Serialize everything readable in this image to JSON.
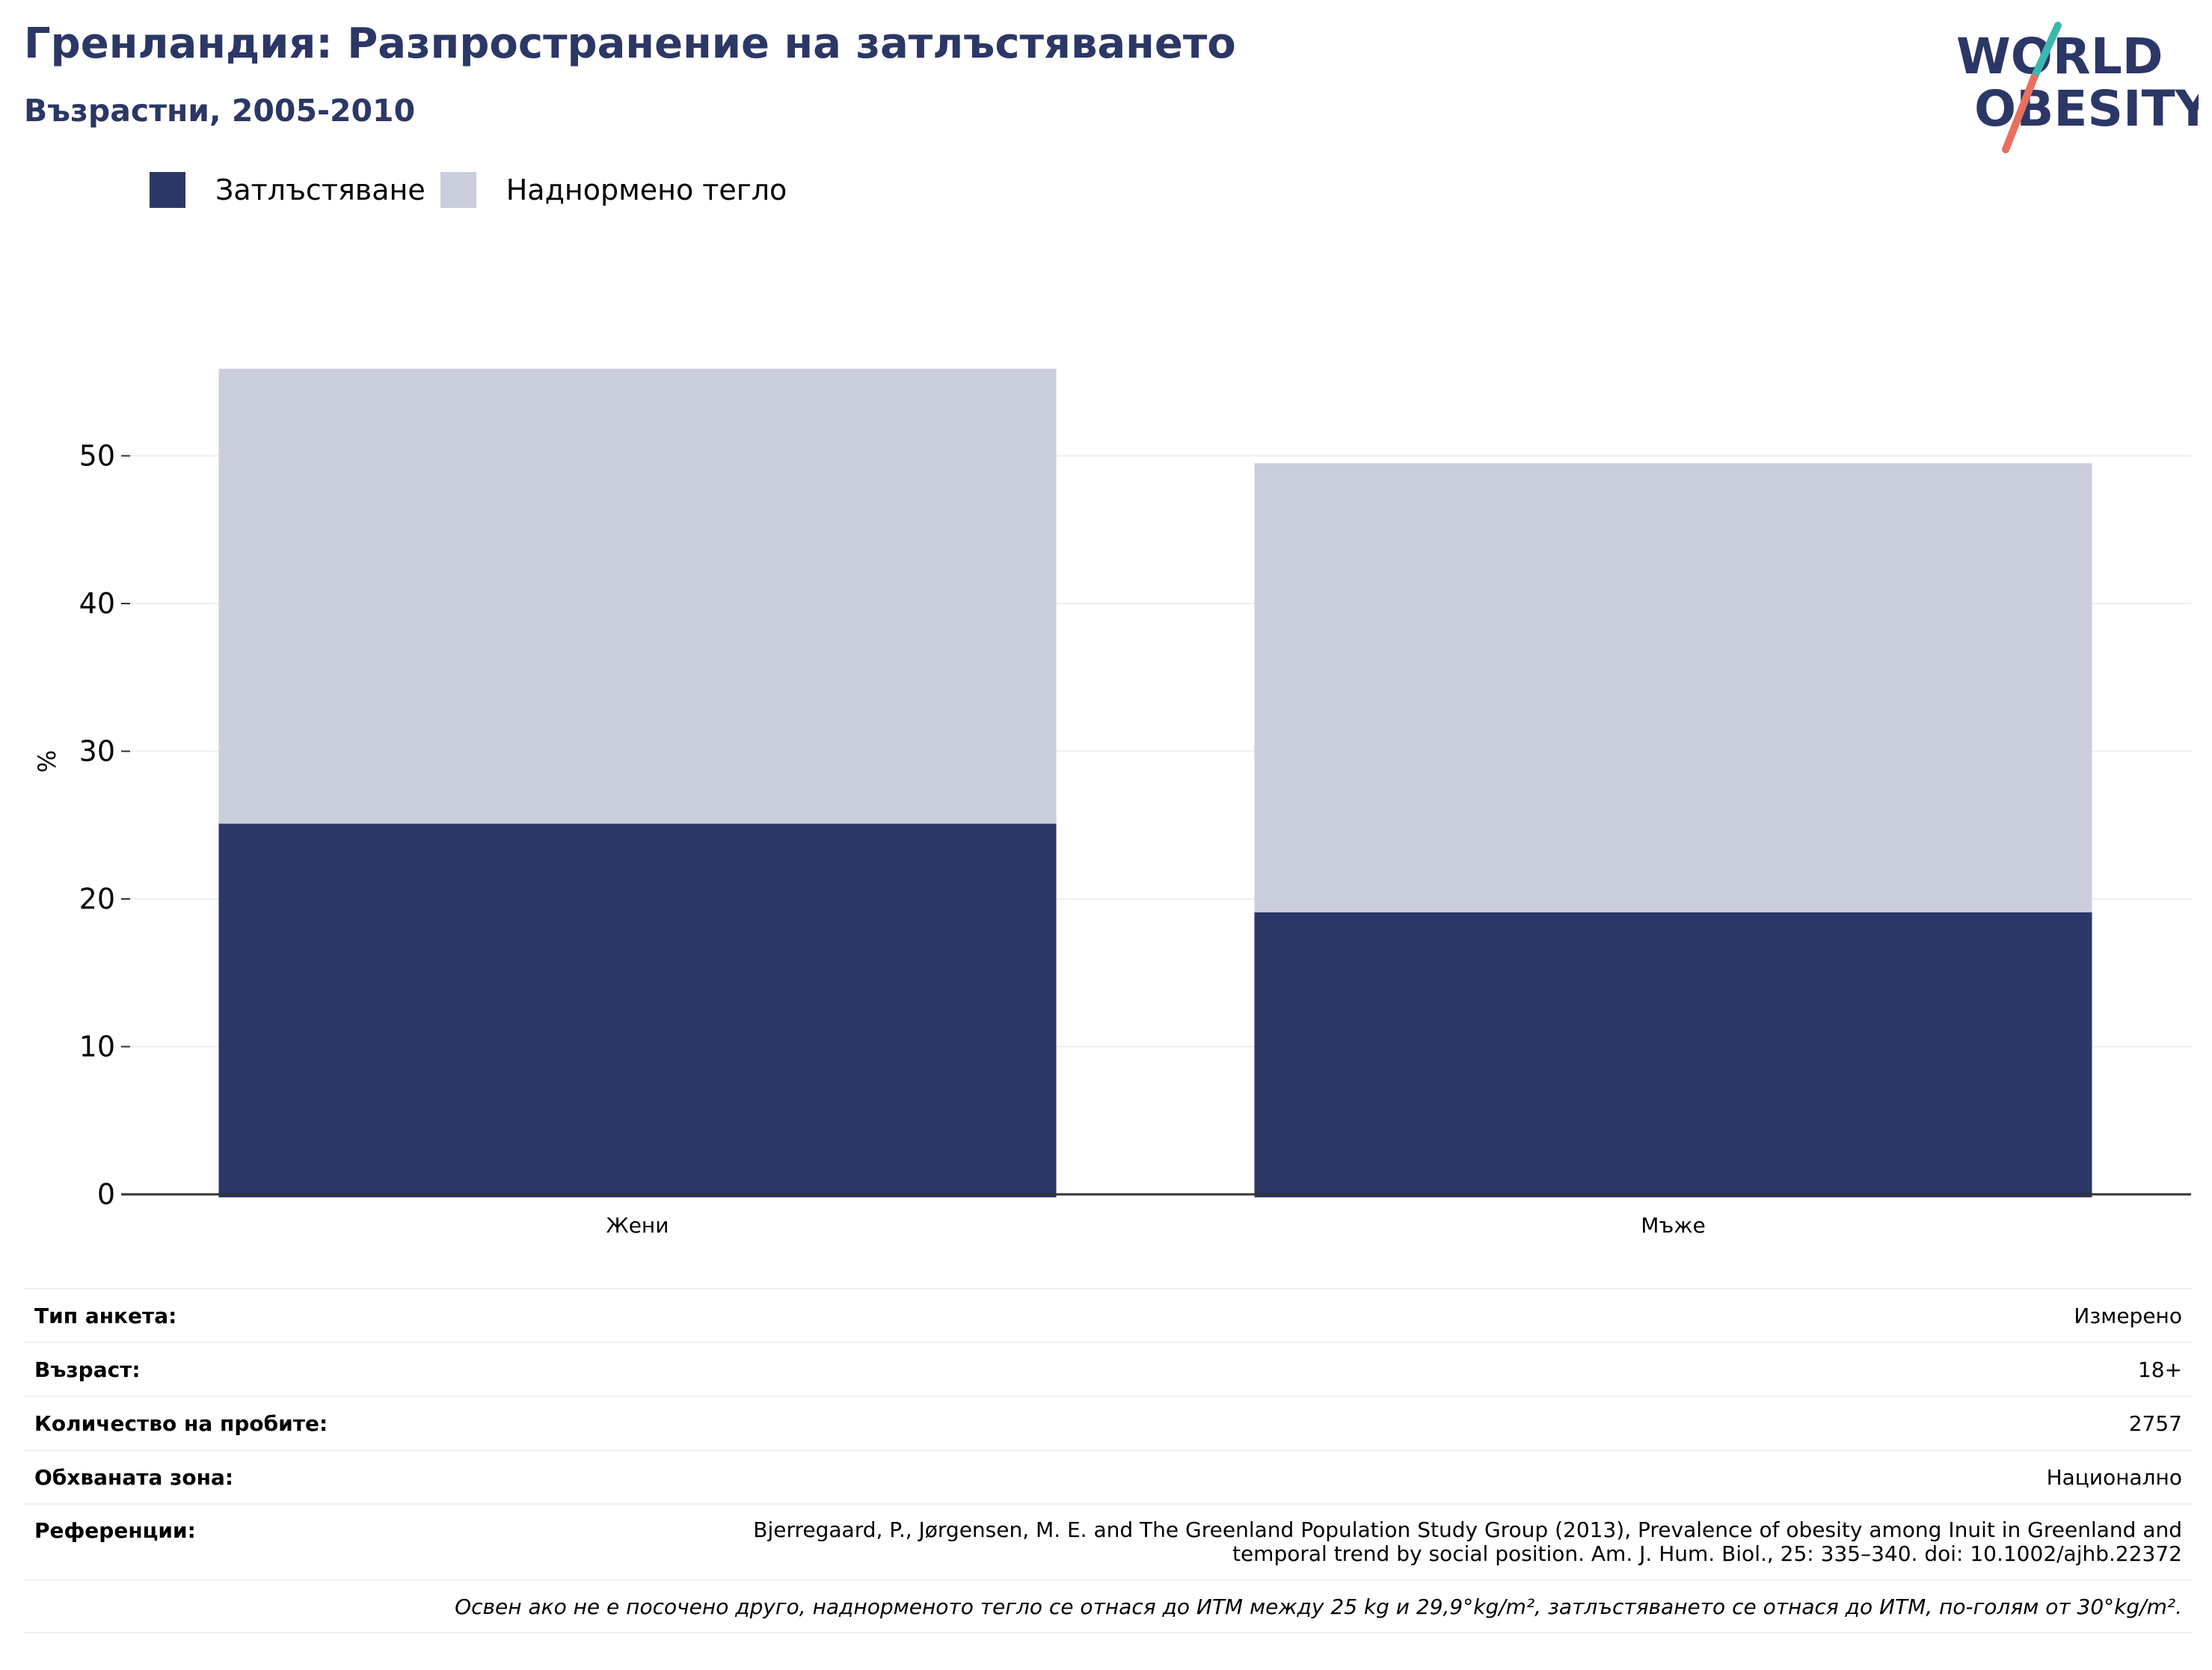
{
  "header": {
    "title": "Гренландия: Разпространение на затлъстяването",
    "subtitle": "Възрастни, 2005-2010"
  },
  "logo": {
    "line1": "WORLD",
    "line2": "OBESITY",
    "colors": {
      "text": "#2b3766",
      "slash_top": "#3ab8b0",
      "slash_bottom": "#e8705f"
    }
  },
  "colors": {
    "obesity": "#2b3766",
    "overweight": "#cacddb",
    "grid": "#eceef3",
    "axis": "#333333"
  },
  "legend": {
    "items": [
      {
        "label": "Затлъстяване",
        "color": "#2b3766"
      },
      {
        "label": "Наднормено тегло",
        "color": "#cacddb"
      }
    ]
  },
  "chart_data": {
    "type": "bar",
    "stacked": true,
    "categories": [
      "Жени",
      "Мъже"
    ],
    "series": [
      {
        "name": "Затлъстяване",
        "values": [
          25.1,
          19.1
        ],
        "color": "#2b3766"
      },
      {
        "name": "Наднормено тегло",
        "values": [
          30.8,
          30.4
        ],
        "color": "#cacddb"
      }
    ],
    "ylabel": "%",
    "yticks": [
      0,
      10,
      20,
      30,
      40,
      50
    ],
    "ylim": [
      0,
      56
    ],
    "grid": true,
    "legend_position": "top-left"
  },
  "meta": {
    "survey_label": "Тип анкета:",
    "survey_value": "Измерено",
    "age_label": "Възраст:",
    "age_value": "18+",
    "sample_label": "Количество на пробите:",
    "sample_value": "2757",
    "area_label": "Обхваната зона:",
    "area_value": "Национално",
    "ref_label": "Референции:",
    "ref_line1": "Bjerregaard, P., Jørgensen, M. E. and The Greenland Population Study Group (2013), Prevalence of obesity among Inuit in Greenland and",
    "ref_line2": "temporal trend by social position. Am. J. Hum. Biol., 25: 335–340. doi: 10.1002/ajhb.22372",
    "footnote": "Освен ако не е посочено друго, наднорменото тегло се отнася до ИТМ между 25 kg и 29,9°kg/m², затлъстяването се отнася до ИТМ, по-голям от 30°kg/m²."
  }
}
